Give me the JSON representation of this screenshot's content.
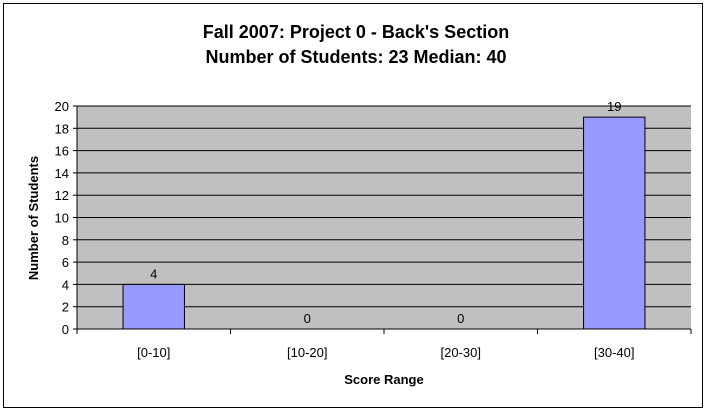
{
  "chart_data": {
    "type": "bar",
    "title": "Fall 2007: Project 0 - Back's Section",
    "subtitle": "Number of Students: 23 Median: 40",
    "xlabel": "Score Range",
    "ylabel": "Number of Students",
    "categories": [
      "[0-10]",
      "[10-20]",
      "[20-30]",
      "[30-40]"
    ],
    "values": [
      4,
      0,
      0,
      19
    ],
    "data_labels": [
      "4",
      "0",
      "0",
      "19"
    ],
    "ylim": [
      0,
      20
    ],
    "yticks": [
      0,
      2,
      4,
      6,
      8,
      10,
      12,
      14,
      16,
      18,
      20
    ],
    "grid": true,
    "legend": "none",
    "colors": {
      "bar_fill": "#9999ff",
      "bar_stroke": "#000000",
      "plot_background": "#c0c0c0",
      "gridline": "#000000"
    }
  }
}
